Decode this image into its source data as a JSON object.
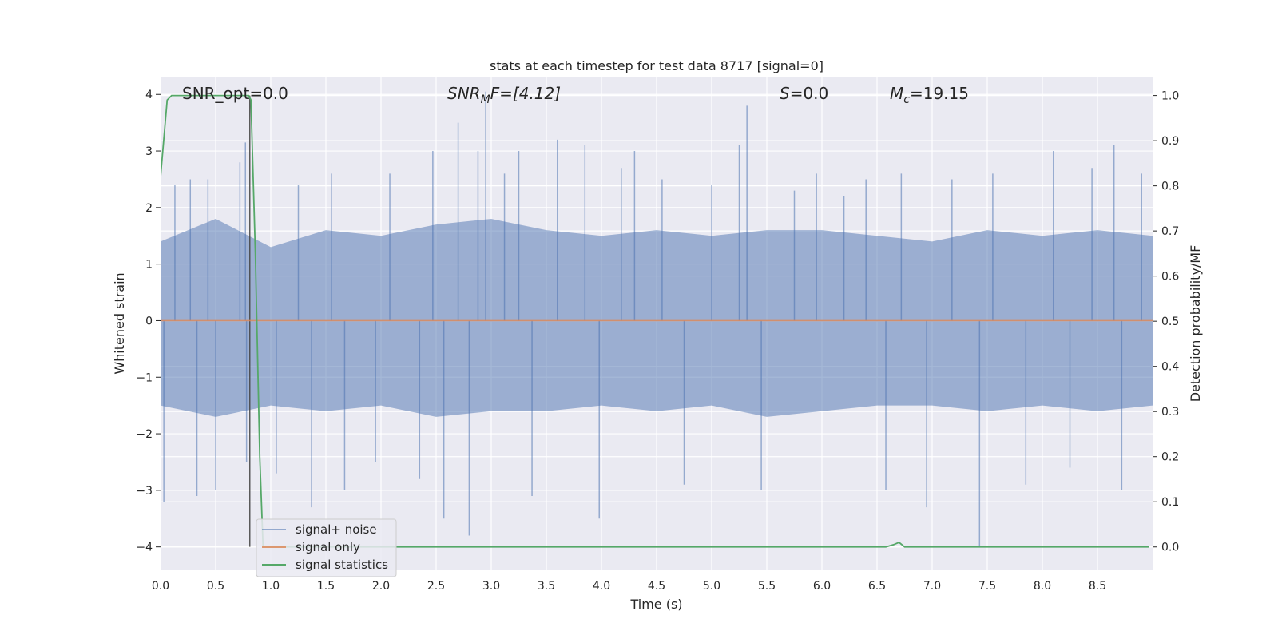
{
  "chart_data": {
    "type": "line",
    "title": "stats at each timestep for test data 8717 [signal=0]",
    "xlabel": "Time (s)",
    "ylabel_left": "Whitened strain",
    "ylabel_right": "Detection probability/MF",
    "xlim": [
      0.0,
      9.0
    ],
    "ylim_left": [
      -4.4,
      4.3
    ],
    "ylim_right": [
      -0.05,
      1.04
    ],
    "x_ticks": [
      "0.0",
      "0.5",
      "1.0",
      "1.5",
      "2.0",
      "2.5",
      "3.0",
      "3.5",
      "4.0",
      "4.5",
      "5.0",
      "5.5",
      "6.0",
      "6.5",
      "7.0",
      "7.5",
      "8.0",
      "8.5"
    ],
    "x_tick_values": [
      0.0,
      0.5,
      1.0,
      1.5,
      2.0,
      2.5,
      3.0,
      3.5,
      4.0,
      4.5,
      5.0,
      5.5,
      6.0,
      6.5,
      7.0,
      7.5,
      8.0,
      8.5
    ],
    "y_left_ticks": [
      "4",
      "3",
      "2",
      "1",
      "0",
      "−1",
      "−2",
      "−3",
      "−4"
    ],
    "y_left_tick_values": [
      4,
      3,
      2,
      1,
      0,
      -1,
      -2,
      -3,
      -4
    ],
    "y_right_ticks": [
      "1.0",
      "0.9",
      "0.8",
      "0.7",
      "0.6",
      "0.5",
      "0.4",
      "0.3",
      "0.2",
      "0.1",
      "0.0"
    ],
    "y_right_tick_values": [
      1.0,
      0.9,
      0.8,
      0.7,
      0.6,
      0.5,
      0.4,
      0.3,
      0.2,
      0.1,
      0.0
    ],
    "grid": true,
    "legend_position": "lower-left",
    "annotations": {
      "snr_opt": "SNR_opt=0.0",
      "snr_mf_main": "SNR",
      "snr_mf_sub": "M",
      "snr_mf_rest": "F=[4.12]",
      "s_main": "S",
      "s_rest": "=0.0",
      "mc_main": "M",
      "mc_sub": "c",
      "mc_rest": "=19.15"
    },
    "vertical_marker_x": 0.81,
    "series": [
      {
        "name": "signal+ noise",
        "axis": "left",
        "color": "#4c72b0",
        "band_upper": [
          [
            0.0,
            1.4
          ],
          [
            0.5,
            1.8
          ],
          [
            1.0,
            1.3
          ],
          [
            1.5,
            1.6
          ],
          [
            2.0,
            1.5
          ],
          [
            2.5,
            1.7
          ],
          [
            3.0,
            1.8
          ],
          [
            3.5,
            1.6
          ],
          [
            4.0,
            1.5
          ],
          [
            4.5,
            1.6
          ],
          [
            5.0,
            1.5
          ],
          [
            5.5,
            1.6
          ],
          [
            6.0,
            1.6
          ],
          [
            6.5,
            1.5
          ],
          [
            7.0,
            1.4
          ],
          [
            7.5,
            1.6
          ],
          [
            8.0,
            1.5
          ],
          [
            8.5,
            1.6
          ],
          [
            9.0,
            1.5
          ]
        ],
        "band_lower": [
          [
            0.0,
            -1.5
          ],
          [
            0.5,
            -1.7
          ],
          [
            1.0,
            -1.5
          ],
          [
            1.5,
            -1.6
          ],
          [
            2.0,
            -1.5
          ],
          [
            2.5,
            -1.7
          ],
          [
            3.0,
            -1.6
          ],
          [
            3.5,
            -1.6
          ],
          [
            4.0,
            -1.5
          ],
          [
            4.5,
            -1.6
          ],
          [
            5.0,
            -1.5
          ],
          [
            5.5,
            -1.7
          ],
          [
            6.0,
            -1.6
          ],
          [
            6.5,
            -1.5
          ],
          [
            7.0,
            -1.5
          ],
          [
            7.5,
            -1.6
          ],
          [
            8.0,
            -1.5
          ],
          [
            8.5,
            -1.6
          ],
          [
            9.0,
            -1.5
          ]
        ],
        "peaks": [
          [
            0.03,
            -3.2
          ],
          [
            0.13,
            2.4
          ],
          [
            0.27,
            2.5
          ],
          [
            0.33,
            -3.1
          ],
          [
            0.43,
            2.5
          ],
          [
            0.5,
            -3.0
          ],
          [
            0.72,
            2.8
          ],
          [
            0.77,
            3.15
          ],
          [
            0.78,
            -2.5
          ],
          [
            1.05,
            -2.7
          ],
          [
            1.25,
            2.4
          ],
          [
            1.37,
            -3.3
          ],
          [
            1.55,
            2.6
          ],
          [
            1.67,
            -3.0
          ],
          [
            1.95,
            -2.5
          ],
          [
            2.08,
            2.6
          ],
          [
            2.35,
            -2.8
          ],
          [
            2.47,
            3.0
          ],
          [
            2.57,
            -3.5
          ],
          [
            2.7,
            3.5
          ],
          [
            2.8,
            -3.8
          ],
          [
            2.88,
            3.0
          ],
          [
            2.95,
            4.05
          ],
          [
            3.12,
            2.6
          ],
          [
            3.25,
            3.0
          ],
          [
            3.37,
            -3.1
          ],
          [
            3.6,
            3.2
          ],
          [
            3.85,
            3.1
          ],
          [
            3.98,
            -3.5
          ],
          [
            4.18,
            2.7
          ],
          [
            4.3,
            3.0
          ],
          [
            4.55,
            2.5
          ],
          [
            4.75,
            -2.9
          ],
          [
            5.0,
            2.4
          ],
          [
            5.25,
            3.1
          ],
          [
            5.32,
            3.8
          ],
          [
            5.45,
            -3.0
          ],
          [
            5.75,
            2.3
          ],
          [
            5.95,
            2.6
          ],
          [
            6.2,
            2.2
          ],
          [
            6.4,
            2.5
          ],
          [
            6.58,
            -3.0
          ],
          [
            6.72,
            2.6
          ],
          [
            6.95,
            -3.3
          ],
          [
            7.18,
            2.5
          ],
          [
            7.43,
            -4.0
          ],
          [
            7.55,
            2.6
          ],
          [
            7.85,
            -2.9
          ],
          [
            8.1,
            3.0
          ],
          [
            8.25,
            -2.6
          ],
          [
            8.45,
            2.7
          ],
          [
            8.65,
            3.1
          ],
          [
            8.72,
            -3.0
          ],
          [
            8.9,
            2.6
          ]
        ]
      },
      {
        "name": "signal only",
        "axis": "left",
        "color": "#dd8452",
        "points": [
          [
            0.0,
            0.0
          ],
          [
            9.0,
            0.0
          ]
        ]
      },
      {
        "name": "signal statistics",
        "axis": "right",
        "color": "#55a868",
        "points": [
          [
            0.0,
            0.82
          ],
          [
            0.06,
            0.99
          ],
          [
            0.1,
            1.0
          ],
          [
            0.8,
            1.0
          ],
          [
            0.82,
            0.99
          ],
          [
            0.86,
            0.65
          ],
          [
            0.9,
            0.2
          ],
          [
            0.93,
            0.0
          ],
          [
            6.58,
            0.0
          ],
          [
            6.65,
            0.005
          ],
          [
            6.7,
            0.01
          ],
          [
            6.75,
            0.0
          ],
          [
            8.97,
            0.0
          ]
        ]
      }
    ]
  }
}
